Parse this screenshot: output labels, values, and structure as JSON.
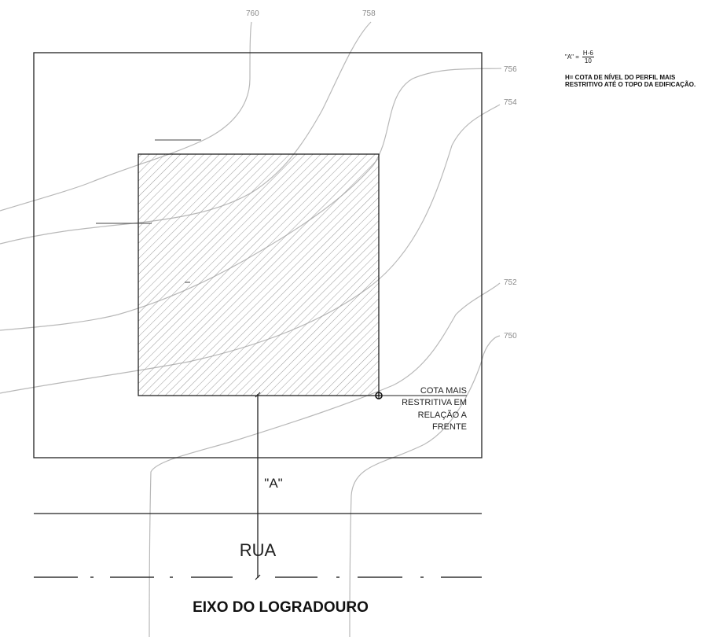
{
  "contour_labels": [
    "760",
    "758",
    "756",
    "754",
    "752",
    "750"
  ],
  "formula": {
    "lhs": "\"A\" =",
    "numerator": "H-6",
    "denominator": "10"
  },
  "note_lines": [
    "H= COTA DE NÍVEL DO PERFIL MAIS",
    "RESTRITIVO ATÉ O TOPO DA EDIFICAÇÃO."
  ],
  "cota_label_lines": [
    "COTA MAIS",
    "RESTRITIVA EM",
    "RELAÇÃO A",
    "FRENTE"
  ],
  "dimension_label": "\"A\"",
  "street_label": "RUA",
  "axis_label": "EIXO DO LOGRADOURO",
  "colors": {
    "line": "#222222",
    "contour": "#b8b8b8",
    "hatch": "#9a9a9a",
    "label_grey": "#8a8a8a"
  }
}
